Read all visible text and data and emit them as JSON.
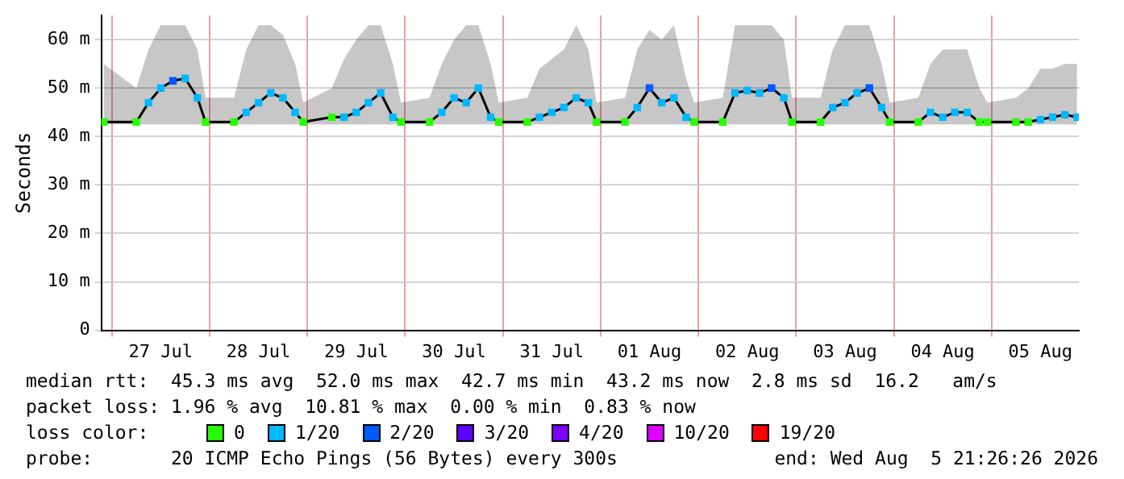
{
  "chart_data": {
    "type": "line",
    "ylabel": "Seconds",
    "legend_title": "loss color:",
    "legend": "bottom",
    "grid": true,
    "marker": "none",
    "line_style": "solid",
    "xlim": [
      "2026-07-26T21:26",
      "2026-08-05T21:26"
    ],
    "xticks": [
      {
        "value": "2026-07-27T00:00",
        "label": null
      },
      {
        "value": "2026-07-27T12:00",
        "label": "27 Jul"
      },
      {
        "value": "2026-07-28T00:00",
        "label": null
      },
      {
        "value": "2026-07-28T12:00",
        "label": "28 Jul"
      },
      {
        "value": "2026-07-29T00:00",
        "label": null
      },
      {
        "value": "2026-07-29T12:00",
        "label": "29 Jul"
      },
      {
        "value": "2026-07-30T00:00",
        "label": null
      },
      {
        "value": "2026-07-30T12:00",
        "label": "30 Jul"
      },
      {
        "value": "2026-07-31T00:00",
        "label": null
      },
      {
        "value": "2026-07-31T12:00",
        "label": "31 Jul"
      },
      {
        "value": "2026-08-01T00:00",
        "label": null
      },
      {
        "value": "2026-08-01T12:00",
        "label": "01 Aug"
      },
      {
        "value": "2026-08-02T00:00",
        "label": null
      },
      {
        "value": "2026-08-02T12:00",
        "label": "02 Aug"
      },
      {
        "value": "2026-08-03T00:00",
        "label": null
      },
      {
        "value": "2026-08-03T12:00",
        "label": "03 Aug"
      },
      {
        "value": "2026-08-04T00:00",
        "label": null
      },
      {
        "value": "2026-08-04T12:00",
        "label": "04 Aug"
      },
      {
        "value": "2026-08-05T00:00",
        "label": null
      },
      {
        "value": "2026-08-05T12:00",
        "label": "05 Aug"
      }
    ],
    "ylim": [
      0,
      65
    ],
    "yticks": [
      0,
      {
        "value": 10,
        "label": "10 m"
      },
      {
        "value": 20,
        "label": "20 m"
      },
      {
        "value": 30,
        "label": "30 m"
      },
      {
        "value": 40,
        "label": "40 m"
      },
      {
        "value": 50,
        "label": "50 m"
      },
      {
        "value": 60,
        "label": "60 m"
      }
    ],
    "x": [
      "2026-07-26T22:00",
      "2026-07-27T06:00",
      "2026-07-27T09:00",
      "2026-07-27T12:00",
      "2026-07-27T15:00",
      "2026-07-27T18:00",
      "2026-07-27T21:00",
      "2026-07-27T23:00",
      "2026-07-28T06:00",
      "2026-07-28T09:00",
      "2026-07-28T12:00",
      "2026-07-28T15:00",
      "2026-07-28T18:00",
      "2026-07-28T21:00",
      "2026-07-28T23:00",
      "2026-07-29T06:00",
      "2026-07-29T09:00",
      "2026-07-29T12:00",
      "2026-07-29T15:00",
      "2026-07-29T18:00",
      "2026-07-29T21:00",
      "2026-07-29T23:00",
      "2026-07-30T06:00",
      "2026-07-30T09:00",
      "2026-07-30T12:00",
      "2026-07-30T15:00",
      "2026-07-30T18:00",
      "2026-07-30T21:00",
      "2026-07-30T23:00",
      "2026-07-31T06:00",
      "2026-07-31T09:00",
      "2026-07-31T12:00",
      "2026-07-31T15:00",
      "2026-07-31T18:00",
      "2026-07-31T21:00",
      "2026-07-31T23:00",
      "2026-08-01T06:00",
      "2026-08-01T09:00",
      "2026-08-01T12:00",
      "2026-08-01T15:00",
      "2026-08-01T18:00",
      "2026-08-01T21:00",
      "2026-08-01T23:00",
      "2026-08-02T06:00",
      "2026-08-02T09:00",
      "2026-08-02T12:00",
      "2026-08-02T15:00",
      "2026-08-02T18:00",
      "2026-08-02T21:00",
      "2026-08-02T23:00",
      "2026-08-03T06:00",
      "2026-08-03T09:00",
      "2026-08-03T12:00",
      "2026-08-03T15:00",
      "2026-08-03T18:00",
      "2026-08-03T21:00",
      "2026-08-03T23:00",
      "2026-08-04T06:00",
      "2026-08-04T09:00",
      "2026-08-04T12:00",
      "2026-08-04T15:00",
      "2026-08-04T18:00",
      "2026-08-04T21:00",
      "2026-08-04T23:00",
      "2026-08-05T06:00",
      "2026-08-05T09:00",
      "2026-08-05T12:00",
      "2026-08-05T15:00",
      "2026-08-05T18:00",
      "2026-08-05T21:00"
    ],
    "series": [
      {
        "color": "#000000",
        "values": [
          43,
          43,
          47,
          50,
          51.5,
          52,
          48,
          43,
          43,
          45,
          47,
          49,
          48,
          45,
          43,
          44,
          44,
          45,
          47,
          49,
          44,
          43,
          43,
          45,
          48,
          47,
          50,
          44,
          43,
          43,
          44,
          45,
          46,
          48,
          47,
          43,
          43,
          46,
          50,
          47,
          48,
          44,
          43,
          43,
          49,
          49.5,
          49,
          50,
          48,
          43,
          43,
          46,
          47,
          49,
          50,
          46,
          43,
          43,
          45,
          44,
          45,
          45,
          43,
          43,
          43,
          43,
          43.5,
          44,
          44.5,
          44
        ],
        "lower": [
          42.5,
          42.5,
          42.5,
          42.5,
          42.5,
          42.5,
          42.5,
          42.5,
          42.5,
          42.5,
          42.5,
          42.5,
          42.5,
          42.5,
          42.5,
          42.5,
          42.5,
          42.5,
          42.5,
          42.5,
          42.5,
          42.5,
          42.5,
          42.5,
          42.5,
          42.5,
          42.5,
          42.5,
          42.5,
          42.5,
          42.5,
          42.5,
          42.5,
          42.5,
          42.5,
          42.5,
          42.5,
          42.5,
          42.5,
          42.5,
          42.5,
          42.5,
          42.5,
          42.5,
          42.5,
          42.5,
          42.5,
          42.5,
          42.5,
          42.5,
          42.5,
          42.5,
          42.5,
          42.5,
          42.5,
          42.5,
          42.5,
          42.5,
          42.5,
          42.5,
          42.5,
          42.5,
          42.5,
          42.5,
          42.5,
          42.5,
          42.5,
          42.5,
          42.5,
          42.5
        ],
        "upper": [
          55,
          50,
          58,
          63,
          63,
          63,
          58,
          48,
          48,
          58,
          63,
          63,
          61,
          55,
          47,
          50,
          56,
          60,
          63,
          63,
          55,
          47,
          48,
          55,
          60,
          63,
          63,
          55,
          47,
          48,
          54,
          56,
          58,
          63,
          58,
          47,
          48,
          58,
          62,
          60,
          63,
          52,
          47,
          48,
          63,
          63,
          63,
          63,
          60,
          48,
          48,
          58,
          63,
          63,
          63,
          55,
          47,
          48,
          55,
          58,
          58,
          58,
          50,
          47,
          48,
          50,
          54,
          54,
          55,
          55
        ]
      },
      {
        "type": "scatter",
        "name": "0",
        "color": "#26ff00",
        "marker": "square",
        "x": [
          "2026-07-26T22:00",
          "2026-07-27T06:00",
          "2026-07-27T23:00",
          "2026-07-28T06:00",
          "2026-07-28T23:00",
          "2026-07-29T06:00",
          "2026-07-29T23:00",
          "2026-07-30T06:00",
          "2026-07-30T23:00",
          "2026-07-31T06:00",
          "2026-07-31T23:00",
          "2026-08-01T06:00",
          "2026-08-01T23:00",
          "2026-08-02T06:00",
          "2026-08-02T23:00",
          "2026-08-03T06:00",
          "2026-08-03T23:00",
          "2026-08-04T06:00",
          "2026-08-04T21:00",
          "2026-08-04T23:00",
          "2026-08-05T06:00",
          "2026-08-05T09:00"
        ],
        "values": [
          43,
          43,
          43,
          43,
          43,
          44,
          43,
          43,
          43,
          43,
          43,
          43,
          43,
          43,
          43,
          43,
          43,
          43,
          43,
          43,
          43,
          43
        ]
      },
      {
        "type": "scatter",
        "name": "1/20",
        "color": "#00b8ff",
        "marker": "square",
        "x": [
          "2026-07-27T09:00",
          "2026-07-27T12:00",
          "2026-07-27T18:00",
          "2026-07-27T21:00",
          "2026-07-28T09:00",
          "2026-07-28T12:00",
          "2026-07-28T15:00",
          "2026-07-28T18:00",
          "2026-07-28T21:00",
          "2026-07-29T09:00",
          "2026-07-29T12:00",
          "2026-07-29T15:00",
          "2026-07-29T18:00",
          "2026-07-29T21:00",
          "2026-07-30T09:00",
          "2026-07-30T12:00",
          "2026-07-30T15:00",
          "2026-07-30T18:00",
          "2026-07-30T21:00",
          "2026-07-31T09:00",
          "2026-07-31T12:00",
          "2026-07-31T15:00",
          "2026-07-31T18:00",
          "2026-07-31T21:00",
          "2026-08-01T09:00",
          "2026-08-01T15:00",
          "2026-08-01T18:00",
          "2026-08-01T21:00",
          "2026-08-02T09:00",
          "2026-08-02T12:00",
          "2026-08-02T15:00",
          "2026-08-02T21:00",
          "2026-08-03T09:00",
          "2026-08-03T12:00",
          "2026-08-03T15:00",
          "2026-08-03T21:00",
          "2026-08-04T09:00",
          "2026-08-04T12:00",
          "2026-08-04T15:00",
          "2026-08-04T18:00",
          "2026-08-05T12:00",
          "2026-08-05T15:00",
          "2026-08-05T18:00",
          "2026-08-05T21:00"
        ],
        "values": [
          47,
          50,
          52,
          48,
          45,
          47,
          49,
          48,
          45,
          44,
          45,
          47,
          49,
          44,
          45,
          48,
          47,
          50,
          44,
          44,
          45,
          46,
          48,
          47,
          46,
          47,
          48,
          44,
          49,
          49.5,
          49,
          48,
          46,
          47,
          49,
          46,
          45,
          44,
          45,
          45,
          43.5,
          44,
          44.5,
          44
        ]
      },
      {
        "type": "scatter",
        "name": "2/20",
        "color": "#0059ff",
        "marker": "square",
        "x": [
          "2026-07-27T15:00",
          "2026-08-01T12:00",
          "2026-08-02T18:00",
          "2026-08-03T18:00"
        ],
        "values": [
          51.5,
          50,
          50,
          50
        ]
      },
      {
        "type": "scatter",
        "name": "3/20",
        "color": "#5e00ff",
        "marker": "square",
        "values": [
          null,
          null,
          null,
          null,
          null,
          null,
          null,
          null,
          null,
          null,
          null,
          null,
          null,
          null,
          null,
          null,
          null,
          null,
          null,
          null,
          null,
          null,
          null,
          null,
          null,
          null,
          null,
          null,
          null,
          null,
          null,
          null,
          null,
          null,
          null,
          null,
          null,
          null,
          null,
          null,
          null,
          null,
          null,
          null,
          null,
          null,
          null,
          null,
          null,
          null,
          null,
          null,
          null,
          null,
          null,
          null,
          null,
          null,
          null,
          null,
          null,
          null,
          null,
          null,
          null,
          null,
          null,
          null,
          null,
          null
        ]
      },
      {
        "type": "scatter",
        "name": "4/20",
        "color": "#7e00ff",
        "marker": "square",
        "values": [
          null,
          null,
          null,
          null,
          null,
          null,
          null,
          null,
          null,
          null,
          null,
          null,
          null,
          null,
          null,
          null,
          null,
          null,
          null,
          null,
          null,
          null,
          null,
          null,
          null,
          null,
          null,
          null,
          null,
          null,
          null,
          null,
          null,
          null,
          null,
          null,
          null,
          null,
          null,
          null,
          null,
          null,
          null,
          null,
          null,
          null,
          null,
          null,
          null,
          null,
          null,
          null,
          null,
          null,
          null,
          null,
          null,
          null,
          null,
          null,
          null,
          null,
          null,
          null,
          null,
          null,
          null,
          null,
          null,
          null
        ]
      },
      {
        "type": "scatter",
        "name": "10/20",
        "color": "#dd00ff",
        "marker": "square",
        "values": [
          null,
          null,
          null,
          null,
          null,
          null,
          null,
          null,
          null,
          null,
          null,
          null,
          null,
          null,
          null,
          null,
          null,
          null,
          null,
          null,
          null,
          null,
          null,
          null,
          null,
          null,
          null,
          null,
          null,
          null,
          null,
          null,
          null,
          null,
          null,
          null,
          null,
          null,
          null,
          null,
          null,
          null,
          null,
          null,
          null,
          null,
          null,
          null,
          null,
          null,
          null,
          null,
          null,
          null,
          null,
          null,
          null,
          null,
          null,
          null,
          null,
          null,
          null,
          null,
          null,
          null,
          null,
          null,
          null,
          null
        ]
      },
      {
        "type": "scatter",
        "name": "19/20",
        "color": "#ff0000",
        "marker": "square",
        "values": [
          null,
          null,
          null,
          null,
          null,
          null,
          null,
          null,
          null,
          null,
          null,
          null,
          null,
          null,
          null,
          null,
          null,
          null,
          null,
          null,
          null,
          null,
          null,
          null,
          null,
          null,
          null,
          null,
          null,
          null,
          null,
          null,
          null,
          null,
          null,
          null,
          null,
          null,
          null,
          null,
          null,
          null,
          null,
          null,
          null,
          null,
          null,
          null,
          null,
          null,
          null,
          null,
          null,
          null,
          null,
          null,
          null,
          null,
          null,
          null,
          null,
          null,
          null,
          null,
          null,
          null,
          null,
          null,
          null,
          null
        ]
      }
    ],
    "annotations": [
      "median rtt:  45.3 ms avg  52.0 ms max  42.7 ms min  43.2 ms now  2.8 ms sd  16.2   am/s",
      "packet loss: 1.96 % avg  10.81 % max  0.00 % min  0.83 % now",
      "probe:       20 ICMP Echo Pings (56 Bytes) every 300s",
      "end: Wed Aug  5 21:26:26 2026"
    ]
  }
}
